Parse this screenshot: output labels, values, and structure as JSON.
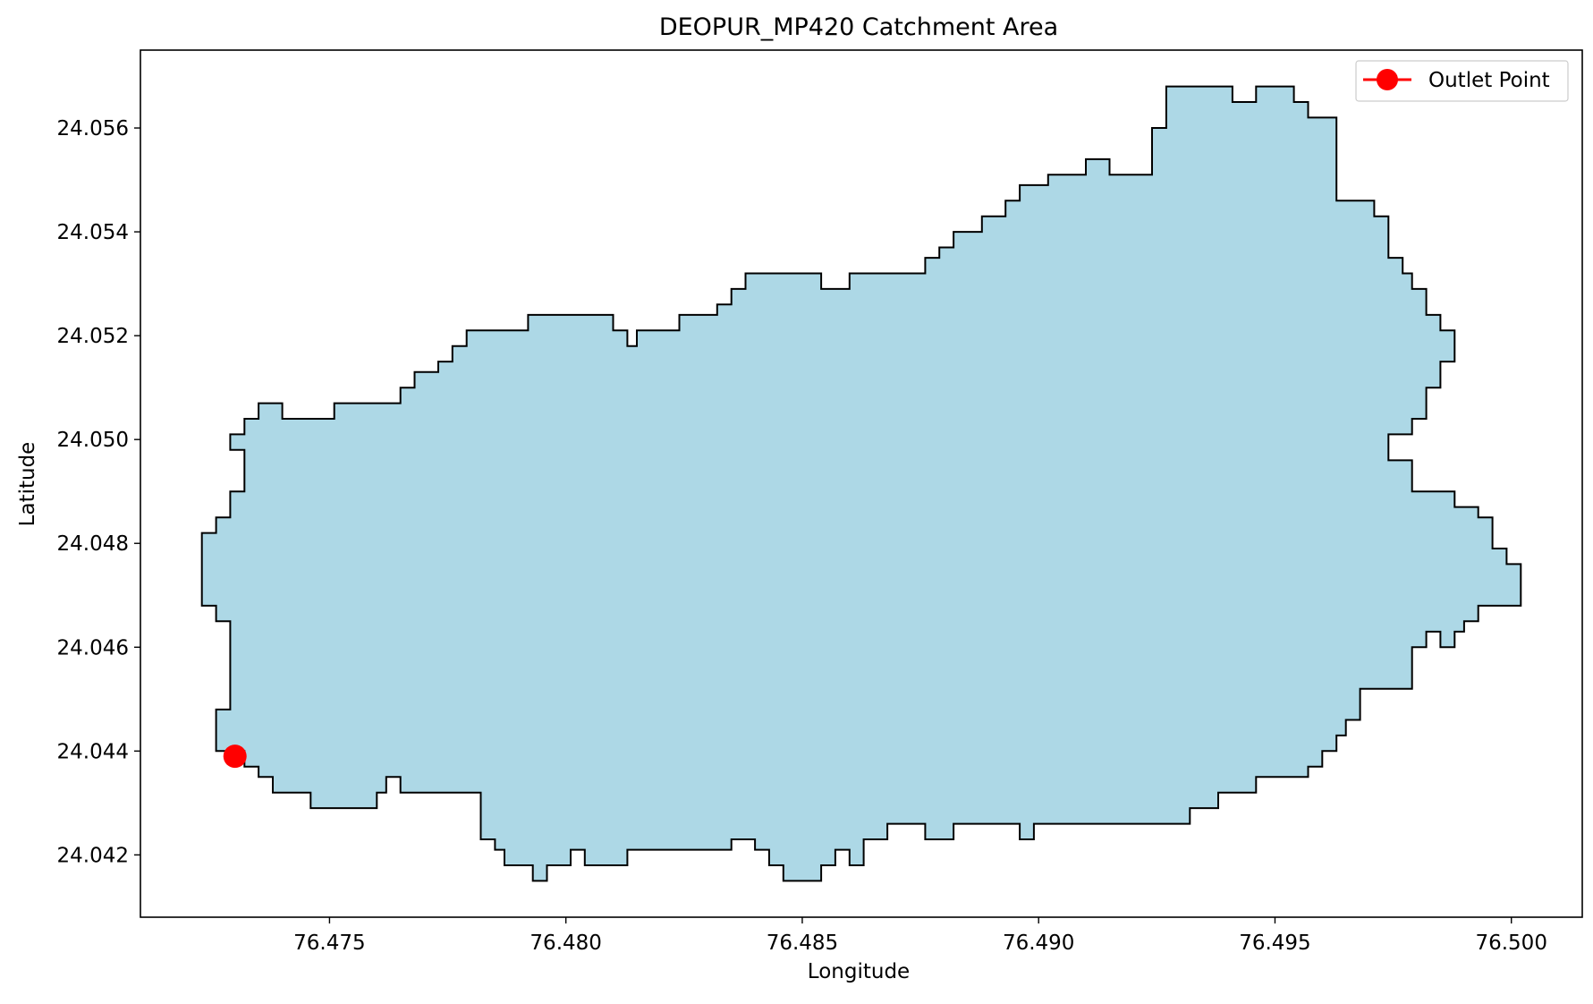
{
  "chart_data": {
    "type": "scatter",
    "title": "DEOPUR_MP420 Catchment Area",
    "xlabel": "Longitude",
    "ylabel": "Latitude",
    "xlim": [
      76.471,
      76.5015
    ],
    "ylim": [
      24.0408,
      24.0575
    ],
    "xticks": [
      76.475,
      76.48,
      76.485,
      76.49,
      76.495,
      76.5
    ],
    "xtick_labels": [
      "76.475",
      "76.480",
      "76.485",
      "76.490",
      "76.495",
      "76.500"
    ],
    "yticks": [
      24.042,
      24.044,
      24.046,
      24.048,
      24.05,
      24.052,
      24.054,
      24.056
    ],
    "ytick_labels": [
      "24.042",
      "24.044",
      "24.046",
      "24.048",
      "24.050",
      "24.052",
      "24.054",
      "24.056"
    ],
    "grid": false,
    "legend_placement": "upper right",
    "catchment": {
      "fill_color": "#add8e6",
      "edge_color": "#000000",
      "boundary": [
        [
          76.4723,
          24.0482
        ],
        [
          76.4726,
          24.0482
        ],
        [
          76.4726,
          24.0485
        ],
        [
          76.4729,
          24.0485
        ],
        [
          76.4729,
          24.049
        ],
        [
          76.4732,
          24.049
        ],
        [
          76.4732,
          24.0498
        ],
        [
          76.4729,
          24.0498
        ],
        [
          76.4729,
          24.0501
        ],
        [
          76.4732,
          24.0501
        ],
        [
          76.4732,
          24.0504
        ],
        [
          76.4735,
          24.0504
        ],
        [
          76.4735,
          24.0507
        ],
        [
          76.474,
          24.0507
        ],
        [
          76.474,
          24.0504
        ],
        [
          76.4751,
          24.0504
        ],
        [
          76.4751,
          24.0507
        ],
        [
          76.4765,
          24.0507
        ],
        [
          76.4765,
          24.051
        ],
        [
          76.4768,
          24.051
        ],
        [
          76.4768,
          24.0513
        ],
        [
          76.4773,
          24.0513
        ],
        [
          76.4773,
          24.0515
        ],
        [
          76.4776,
          24.0515
        ],
        [
          76.4776,
          24.0518
        ],
        [
          76.4779,
          24.0518
        ],
        [
          76.4779,
          24.0521
        ],
        [
          76.4792,
          24.0521
        ],
        [
          76.4792,
          24.0524
        ],
        [
          76.481,
          24.0524
        ],
        [
          76.481,
          24.0521
        ],
        [
          76.4813,
          24.0521
        ],
        [
          76.4813,
          24.0518
        ],
        [
          76.4815,
          24.0518
        ],
        [
          76.4815,
          24.0521
        ],
        [
          76.4824,
          24.0521
        ],
        [
          76.4824,
          24.0524
        ],
        [
          76.4832,
          24.0524
        ],
        [
          76.4832,
          24.0526
        ],
        [
          76.4835,
          24.0526
        ],
        [
          76.4835,
          24.0529
        ],
        [
          76.4838,
          24.0529
        ],
        [
          76.4838,
          24.0532
        ],
        [
          76.4854,
          24.0532
        ],
        [
          76.4854,
          24.0529
        ],
        [
          76.486,
          24.0529
        ],
        [
          76.486,
          24.0532
        ],
        [
          76.4876,
          24.0532
        ],
        [
          76.4876,
          24.0535
        ],
        [
          76.4879,
          24.0535
        ],
        [
          76.4879,
          24.0537
        ],
        [
          76.4882,
          24.0537
        ],
        [
          76.4882,
          24.054
        ],
        [
          76.4888,
          24.054
        ],
        [
          76.4888,
          24.0543
        ],
        [
          76.4893,
          24.0543
        ],
        [
          76.4893,
          24.0546
        ],
        [
          76.4896,
          24.0546
        ],
        [
          76.4896,
          24.0549
        ],
        [
          76.4902,
          24.0549
        ],
        [
          76.4902,
          24.0551
        ],
        [
          76.491,
          24.0551
        ],
        [
          76.491,
          24.0554
        ],
        [
          76.4915,
          24.0554
        ],
        [
          76.4915,
          24.0551
        ],
        [
          76.4924,
          24.0551
        ],
        [
          76.4924,
          24.056
        ],
        [
          76.4927,
          24.056
        ],
        [
          76.4927,
          24.0568
        ],
        [
          76.4941,
          24.0568
        ],
        [
          76.4941,
          24.0565
        ],
        [
          76.4946,
          24.0565
        ],
        [
          76.4946,
          24.0568
        ],
        [
          76.4954,
          24.0568
        ],
        [
          76.4954,
          24.0565
        ],
        [
          76.4957,
          24.0565
        ],
        [
          76.4957,
          24.0562
        ],
        [
          76.4963,
          24.0562
        ],
        [
          76.4963,
          24.0546
        ],
        [
          76.4971,
          24.0546
        ],
        [
          76.4971,
          24.0543
        ],
        [
          76.4974,
          24.0543
        ],
        [
          76.4974,
          24.0535
        ],
        [
          76.4977,
          24.0535
        ],
        [
          76.4977,
          24.0532
        ],
        [
          76.4979,
          24.0532
        ],
        [
          76.4979,
          24.0529
        ],
        [
          76.4982,
          24.0529
        ],
        [
          76.4982,
          24.0524
        ],
        [
          76.4985,
          24.0524
        ],
        [
          76.4985,
          24.0521
        ],
        [
          76.4988,
          24.0521
        ],
        [
          76.4988,
          24.0515
        ],
        [
          76.4985,
          24.0515
        ],
        [
          76.4985,
          24.051
        ],
        [
          76.4982,
          24.051
        ],
        [
          76.4982,
          24.0504
        ],
        [
          76.4979,
          24.0504
        ],
        [
          76.4979,
          24.0501
        ],
        [
          76.4974,
          24.0501
        ],
        [
          76.4974,
          24.0496
        ],
        [
          76.4979,
          24.0496
        ],
        [
          76.4979,
          24.049
        ],
        [
          76.4988,
          24.049
        ],
        [
          76.4988,
          24.0487
        ],
        [
          76.4993,
          24.0487
        ],
        [
          76.4993,
          24.0485
        ],
        [
          76.4996,
          24.0485
        ],
        [
          76.4996,
          24.0479
        ],
        [
          76.4999,
          24.0479
        ],
        [
          76.4999,
          24.0476
        ],
        [
          76.5002,
          24.0476
        ],
        [
          76.5002,
          24.0468
        ],
        [
          76.4993,
          24.0468
        ],
        [
          76.4993,
          24.0465
        ],
        [
          76.499,
          24.0465
        ],
        [
          76.499,
          24.0463
        ],
        [
          76.4988,
          24.0463
        ],
        [
          76.4988,
          24.046
        ],
        [
          76.4985,
          24.046
        ],
        [
          76.4985,
          24.0463
        ],
        [
          76.4982,
          24.0463
        ],
        [
          76.4982,
          24.046
        ],
        [
          76.4979,
          24.046
        ],
        [
          76.4979,
          24.0452
        ],
        [
          76.4968,
          24.0452
        ],
        [
          76.4968,
          24.0446
        ],
        [
          76.4965,
          24.0446
        ],
        [
          76.4965,
          24.0443
        ],
        [
          76.4963,
          24.0443
        ],
        [
          76.4963,
          24.044
        ],
        [
          76.496,
          24.044
        ],
        [
          76.496,
          24.0437
        ],
        [
          76.4957,
          24.0437
        ],
        [
          76.4957,
          24.0435
        ],
        [
          76.4946,
          24.0435
        ],
        [
          76.4946,
          24.0432
        ],
        [
          76.4938,
          24.0432
        ],
        [
          76.4938,
          24.0429
        ],
        [
          76.4932,
          24.0429
        ],
        [
          76.4932,
          24.0426
        ],
        [
          76.4899,
          24.0426
        ],
        [
          76.4899,
          24.0423
        ],
        [
          76.4896,
          24.0423
        ],
        [
          76.4896,
          24.0426
        ],
        [
          76.4882,
          24.0426
        ],
        [
          76.4882,
          24.0423
        ],
        [
          76.4876,
          24.0423
        ],
        [
          76.4876,
          24.0426
        ],
        [
          76.4868,
          24.0426
        ],
        [
          76.4868,
          24.0423
        ],
        [
          76.4863,
          24.0423
        ],
        [
          76.4863,
          24.0418
        ],
        [
          76.486,
          24.0418
        ],
        [
          76.486,
          24.0421
        ],
        [
          76.4857,
          24.0421
        ],
        [
          76.4857,
          24.0418
        ],
        [
          76.4854,
          24.0418
        ],
        [
          76.4854,
          24.0415
        ],
        [
          76.4846,
          24.0415
        ],
        [
          76.4846,
          24.0418
        ],
        [
          76.4843,
          24.0418
        ],
        [
          76.4843,
          24.0421
        ],
        [
          76.484,
          24.0421
        ],
        [
          76.484,
          24.0423
        ],
        [
          76.4835,
          24.0423
        ],
        [
          76.4835,
          24.0421
        ],
        [
          76.4813,
          24.0421
        ],
        [
          76.4813,
          24.0418
        ],
        [
          76.4804,
          24.0418
        ],
        [
          76.4804,
          24.0421
        ],
        [
          76.4801,
          24.0421
        ],
        [
          76.4801,
          24.0418
        ],
        [
          76.4796,
          24.0418
        ],
        [
          76.4796,
          24.0415
        ],
        [
          76.4793,
          24.0415
        ],
        [
          76.4793,
          24.0418
        ],
        [
          76.4787,
          24.0418
        ],
        [
          76.4787,
          24.0421
        ],
        [
          76.4785,
          24.0421
        ],
        [
          76.4785,
          24.0423
        ],
        [
          76.4782,
          24.0423
        ],
        [
          76.4782,
          24.0432
        ],
        [
          76.4765,
          24.0432
        ],
        [
          76.4765,
          24.0435
        ],
        [
          76.4762,
          24.0435
        ],
        [
          76.4762,
          24.0432
        ],
        [
          76.476,
          24.0432
        ],
        [
          76.476,
          24.0429
        ],
        [
          76.4746,
          24.0429
        ],
        [
          76.4746,
          24.0432
        ],
        [
          76.4738,
          24.0432
        ],
        [
          76.4738,
          24.0435
        ],
        [
          76.4735,
          24.0435
        ],
        [
          76.4735,
          24.0437
        ],
        [
          76.4732,
          24.0437
        ],
        [
          76.4732,
          24.044
        ],
        [
          76.4726,
          24.044
        ],
        [
          76.4726,
          24.0448
        ],
        [
          76.4729,
          24.0448
        ],
        [
          76.4729,
          24.0465
        ],
        [
          76.4726,
          24.0465
        ],
        [
          76.4726,
          24.0468
        ],
        [
          76.4723,
          24.0468
        ]
      ]
    },
    "outlet_point": {
      "name": "Outlet Point",
      "x": 76.473,
      "y": 24.0439,
      "color": "#ff0000"
    }
  }
}
